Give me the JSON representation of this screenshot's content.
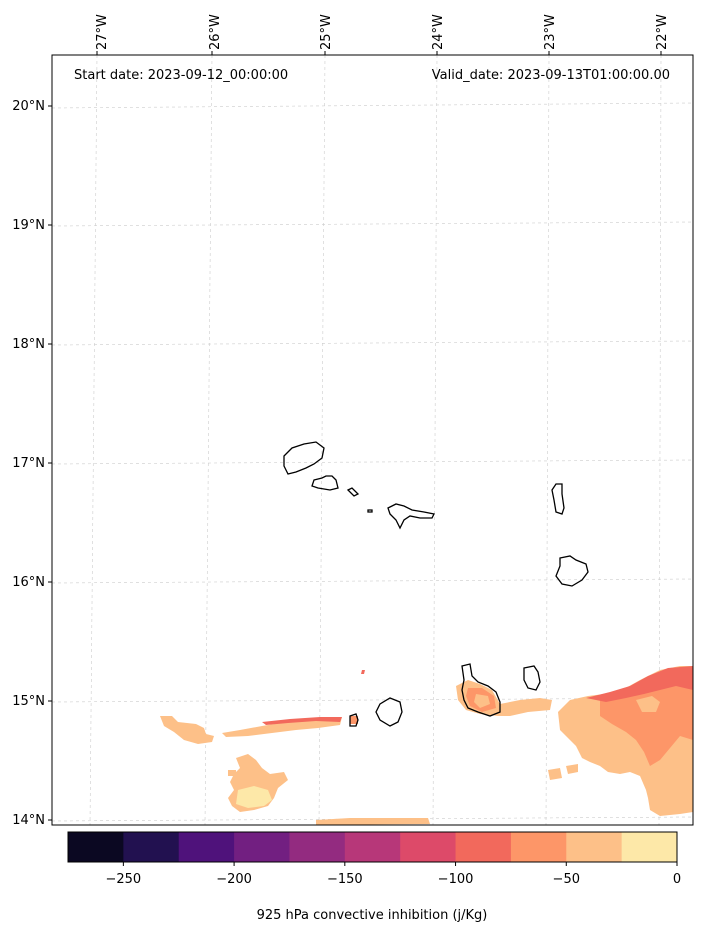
{
  "header": {
    "start_date": "Start date: 2023-09-12_00:00:00",
    "valid_date": "Valid_date: 2023-09-13T01:00:00.00"
  },
  "map": {
    "lon_labels": [
      "27°W",
      "26°W",
      "25°W",
      "24°W",
      "23°W",
      "22°W"
    ],
    "lat_labels": [
      "20°N",
      "19°N",
      "18°N",
      "17°N",
      "16°N",
      "15°N",
      "14°N"
    ],
    "gridlines": true,
    "islands": [
      "Santo Antão",
      "São Vicente",
      "Santa Luzia",
      "Branco",
      "São Nicolau",
      "Sal",
      "Boa Vista",
      "Maio",
      "Santiago",
      "Fogo",
      "Brava"
    ]
  },
  "colorbar": {
    "title": "925 hPa convective inhibition (j/Kg)",
    "tick_labels": [
      "−250",
      "−200",
      "−150",
      "−100",
      "−50",
      "0"
    ],
    "bins": [
      -275,
      -250,
      -225,
      -200,
      -175,
      -150,
      -125,
      -100,
      -75,
      -50,
      -25,
      0
    ],
    "colors": [
      "#0b0822",
      "#221150",
      "#4f127b",
      "#721f81",
      "#932b80",
      "#b73779",
      "#dd4a69",
      "#f2695c",
      "#fd9668",
      "#fdc088",
      "#fde8a8"
    ]
  }
}
